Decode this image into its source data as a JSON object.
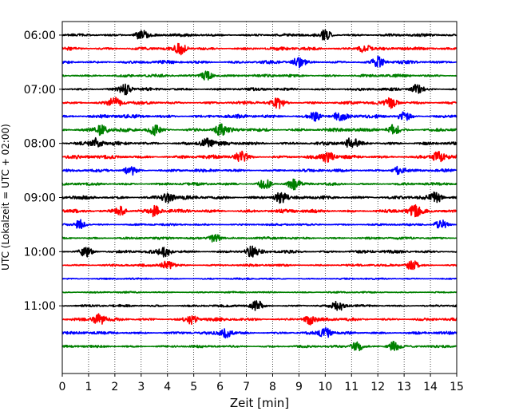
{
  "chart_data": {
    "type": "line",
    "title": "",
    "xlabel": "Zeit  [min]",
    "ylabel": "UTC (Lokalzeit = UTC + 02:00)",
    "xlim": [
      0,
      15
    ],
    "x_ticks": [
      0,
      1,
      2,
      3,
      4,
      5,
      6,
      7,
      8,
      9,
      10,
      11,
      12,
      13,
      14,
      15
    ],
    "x_grid": true,
    "y_grid": false,
    "ylim_time": [
      "05:45",
      "12:15"
    ],
    "y_tick_labels": [
      "06:00",
      "07:00",
      "08:00",
      "09:00",
      "10:00",
      "11:00"
    ],
    "colors": [
      "#000000",
      "#ff0000",
      "#0000ff",
      "#008000"
    ],
    "trace_interval_min": 15,
    "series": [
      {
        "start": "06:00",
        "color": "#000000",
        "amplitude": 0.35,
        "bursts": [
          3.0,
          10.0
        ]
      },
      {
        "start": "06:15",
        "color": "#ff0000",
        "amplitude": 0.4,
        "bursts": [
          4.5,
          11.5
        ]
      },
      {
        "start": "06:30",
        "color": "#0000ff",
        "amplitude": 0.4,
        "bursts": [
          9.0,
          12.0
        ]
      },
      {
        "start": "06:45",
        "color": "#008000",
        "amplitude": 0.35,
        "bursts": [
          5.5
        ]
      },
      {
        "start": "07:00",
        "color": "#000000",
        "amplitude": 0.35,
        "bursts": [
          2.4,
          13.5
        ]
      },
      {
        "start": "07:15",
        "color": "#ff0000",
        "amplitude": 0.4,
        "bursts": [
          2.0,
          8.2,
          12.5
        ]
      },
      {
        "start": "07:30",
        "color": "#0000ff",
        "amplitude": 0.45,
        "bursts": [
          9.6,
          10.6,
          13.0
        ]
      },
      {
        "start": "07:45",
        "color": "#008000",
        "amplitude": 0.45,
        "bursts": [
          1.5,
          3.5,
          6.0,
          12.6
        ]
      },
      {
        "start": "08:00",
        "color": "#000000",
        "amplitude": 0.45,
        "bursts": [
          1.3,
          5.5,
          11.0
        ]
      },
      {
        "start": "08:15",
        "color": "#ff0000",
        "amplitude": 0.45,
        "bursts": [
          6.8,
          10.1,
          14.3
        ]
      },
      {
        "start": "08:30",
        "color": "#0000ff",
        "amplitude": 0.35,
        "bursts": [
          2.6,
          12.8
        ]
      },
      {
        "start": "08:45",
        "color": "#008000",
        "amplitude": 0.35,
        "bursts": [
          7.7,
          8.8
        ]
      },
      {
        "start": "09:00",
        "color": "#000000",
        "amplitude": 0.45,
        "bursts": [
          4.0,
          8.3,
          14.2
        ]
      },
      {
        "start": "09:15",
        "color": "#ff0000",
        "amplitude": 0.45,
        "bursts": [
          2.2,
          3.5,
          13.4
        ]
      },
      {
        "start": "09:30",
        "color": "#0000ff",
        "amplitude": 0.25,
        "bursts": [
          0.7,
          14.4
        ]
      },
      {
        "start": "09:45",
        "color": "#008000",
        "amplitude": 0.3,
        "bursts": [
          5.8
        ]
      },
      {
        "start": "10:00",
        "color": "#000000",
        "amplitude": 0.4,
        "bursts": [
          0.9,
          3.9,
          7.2
        ]
      },
      {
        "start": "10:15",
        "color": "#ff0000",
        "amplitude": 0.3,
        "bursts": [
          4.0,
          13.3
        ]
      },
      {
        "start": "10:30",
        "color": "#0000ff",
        "amplitude": 0.2,
        "bursts": []
      },
      {
        "start": "10:45",
        "color": "#008000",
        "amplitude": 0.2,
        "bursts": []
      },
      {
        "start": "11:00",
        "color": "#000000",
        "amplitude": 0.3,
        "bursts": [
          7.4,
          10.5
        ]
      },
      {
        "start": "11:15",
        "color": "#ff0000",
        "amplitude": 0.4,
        "bursts": [
          1.4,
          4.9,
          9.4
        ]
      },
      {
        "start": "11:30",
        "color": "#0000ff",
        "amplitude": 0.35,
        "bursts": [
          6.2,
          10.0
        ]
      },
      {
        "start": "11:45",
        "color": "#008000",
        "amplitude": 0.3,
        "bursts": [
          11.2,
          12.6
        ]
      }
    ]
  }
}
